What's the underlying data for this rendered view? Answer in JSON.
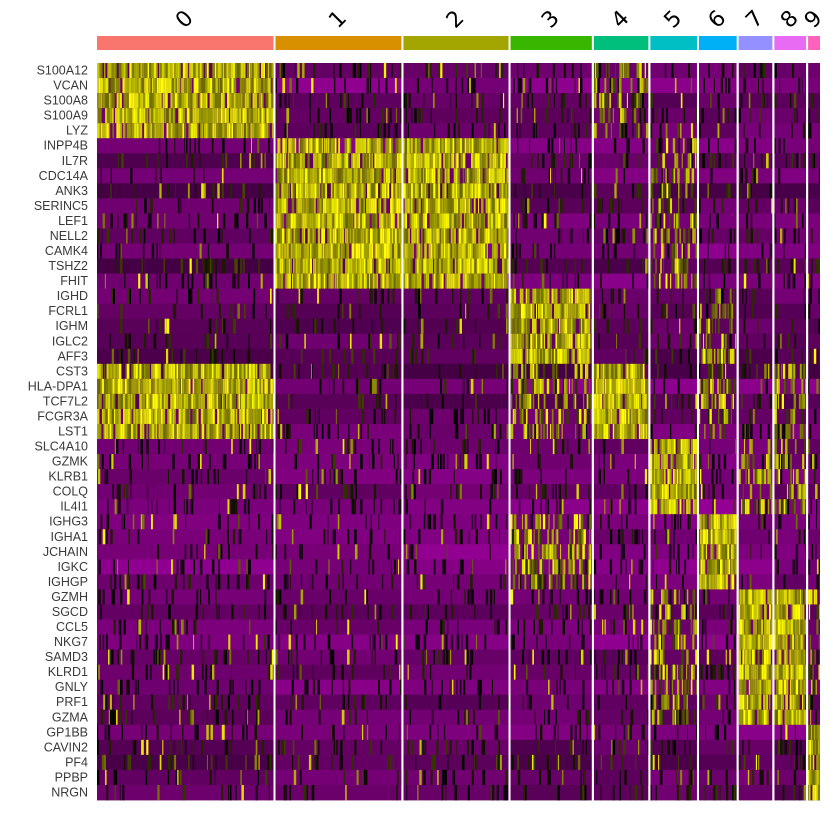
{
  "chart_data": {
    "type": "heatmap",
    "genes": [
      "S100A12",
      "VCAN",
      "S100A8",
      "S100A9",
      "LYZ",
      "INPP4B",
      "IL7R",
      "CDC14A",
      "ANK3",
      "SERINC5",
      "LEF1",
      "NELL2",
      "CAMK4",
      "TSHZ2",
      "FHIT",
      "IGHD",
      "FCRL1",
      "IGHM",
      "IGLC2",
      "AFF3",
      "CST3",
      "HLA-DPA1",
      "TCF7L2",
      "FCGR3A",
      "LST1",
      "SLC4A10",
      "GZMK",
      "KLRB1",
      "COLQ",
      "IL4I1",
      "IGHG3",
      "IGHA1",
      "JCHAIN",
      "IGKC",
      "IGHGP",
      "GZMH",
      "SGCD",
      "CCL5",
      "NKG7",
      "SAMD3",
      "KLRD1",
      "GNLY",
      "PRF1",
      "GZMA",
      "GP1BB",
      "CAVIN2",
      "PF4",
      "PPBP",
      "NRGN"
    ],
    "clusters": [
      {
        "label": "0",
        "color": "#F8766D",
        "relative_size": 178
      },
      {
        "label": "1",
        "color": "#D89000",
        "relative_size": 127
      },
      {
        "label": "2",
        "color": "#A3A500",
        "relative_size": 106
      },
      {
        "label": "3",
        "color": "#39B600",
        "relative_size": 82
      },
      {
        "label": "4",
        "color": "#00BF7D",
        "relative_size": 55
      },
      {
        "label": "5",
        "color": "#00BFC4",
        "relative_size": 47
      },
      {
        "label": "6",
        "color": "#00B0F6",
        "relative_size": 38
      },
      {
        "label": "7",
        "color": "#9590FF",
        "relative_size": 34
      },
      {
        "label": "8",
        "color": "#E76BF3",
        "relative_size": 32
      },
      {
        "label": "9",
        "color": "#FF62BC",
        "relative_size": 12
      }
    ],
    "marker_blocks": [
      {
        "genes": [
          "S100A12",
          "VCAN",
          "S100A8",
          "S100A9",
          "LYZ"
        ],
        "high_in": [
          "0"
        ],
        "partial_in": [
          "4"
        ]
      },
      {
        "genes": [
          "INPP4B",
          "IL7R",
          "CDC14A",
          "ANK3",
          "SERINC5",
          "LEF1",
          "NELL2",
          "CAMK4",
          "TSHZ2",
          "FHIT"
        ],
        "high_in": [
          "1",
          "2"
        ],
        "partial_in": [
          "5"
        ]
      },
      {
        "genes": [
          "IGHD",
          "FCRL1",
          "IGHM",
          "IGLC2",
          "AFF3"
        ],
        "high_in": [
          "3"
        ],
        "partial_in": [
          "6"
        ]
      },
      {
        "genes": [
          "CST3",
          "HLA-DPA1",
          "TCF7L2",
          "FCGR3A",
          "LST1"
        ],
        "high_in": [
          "0",
          "4"
        ],
        "partial_in": [
          "3",
          "6",
          "8"
        ]
      },
      {
        "genes": [
          "SLC4A10",
          "GZMK",
          "KLRB1",
          "COLQ",
          "IL4I1"
        ],
        "high_in": [
          "5"
        ],
        "partial_in": [
          "7",
          "8"
        ]
      },
      {
        "genes": [
          "IGHG3",
          "IGHA1",
          "JCHAIN",
          "IGKC",
          "IGHGP"
        ],
        "high_in": [
          "6"
        ],
        "partial_in": [
          "3"
        ]
      },
      {
        "genes": [
          "GZMH",
          "SGCD",
          "CCL5",
          "NKG7",
          "SAMD3",
          "KLRD1",
          "GNLY",
          "PRF1",
          "GZMA"
        ],
        "high_in": [
          "7",
          "8"
        ],
        "partial_in": [
          "5",
          "9"
        ]
      },
      {
        "genes": [
          "GP1BB",
          "CAVIN2",
          "PF4",
          "PPBP",
          "NRGN"
        ],
        "high_in": [
          "9"
        ],
        "partial_in": []
      }
    ],
    "color_scale": {
      "low": "#FF00FF",
      "mid": "#000000",
      "high": "#FFFF00",
      "background_low": "#7A007A"
    },
    "xlabel": "",
    "ylabel": "",
    "title": ""
  }
}
